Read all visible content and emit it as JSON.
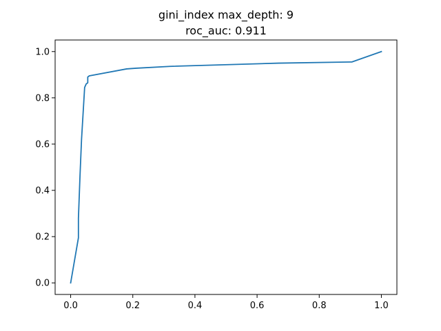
{
  "chart_data": {
    "type": "line",
    "title": "gini_index max_depth: 9",
    "subtitle": "roc_auc: 0.911",
    "xlabel": "",
    "ylabel": "",
    "xlim": [
      -0.05,
      1.05
    ],
    "ylim": [
      -0.05,
      1.05
    ],
    "x_ticks": [
      0.0,
      0.2,
      0.4,
      0.6,
      0.8,
      1.0
    ],
    "y_ticks": [
      0.0,
      0.2,
      0.4,
      0.6,
      0.8,
      1.0
    ],
    "x_tick_labels": [
      "0.0",
      "0.2",
      "0.4",
      "0.6",
      "0.8",
      "1.0"
    ],
    "y_tick_labels": [
      "0.0",
      "0.2",
      "0.4",
      "0.6",
      "0.8",
      "1.0"
    ],
    "grid": false,
    "series": [
      {
        "color": "#1f77b4",
        "x": [
          0.0,
          0.025,
          0.025,
          0.03,
          0.035,
          0.045,
          0.05,
          0.055,
          0.055,
          0.06,
          0.18,
          0.21,
          0.32,
          0.67,
          0.905,
          1.0
        ],
        "y": [
          0.0,
          0.195,
          0.28,
          0.46,
          0.62,
          0.845,
          0.86,
          0.865,
          0.89,
          0.895,
          0.925,
          0.928,
          0.936,
          0.95,
          0.955,
          1.0
        ]
      }
    ]
  }
}
